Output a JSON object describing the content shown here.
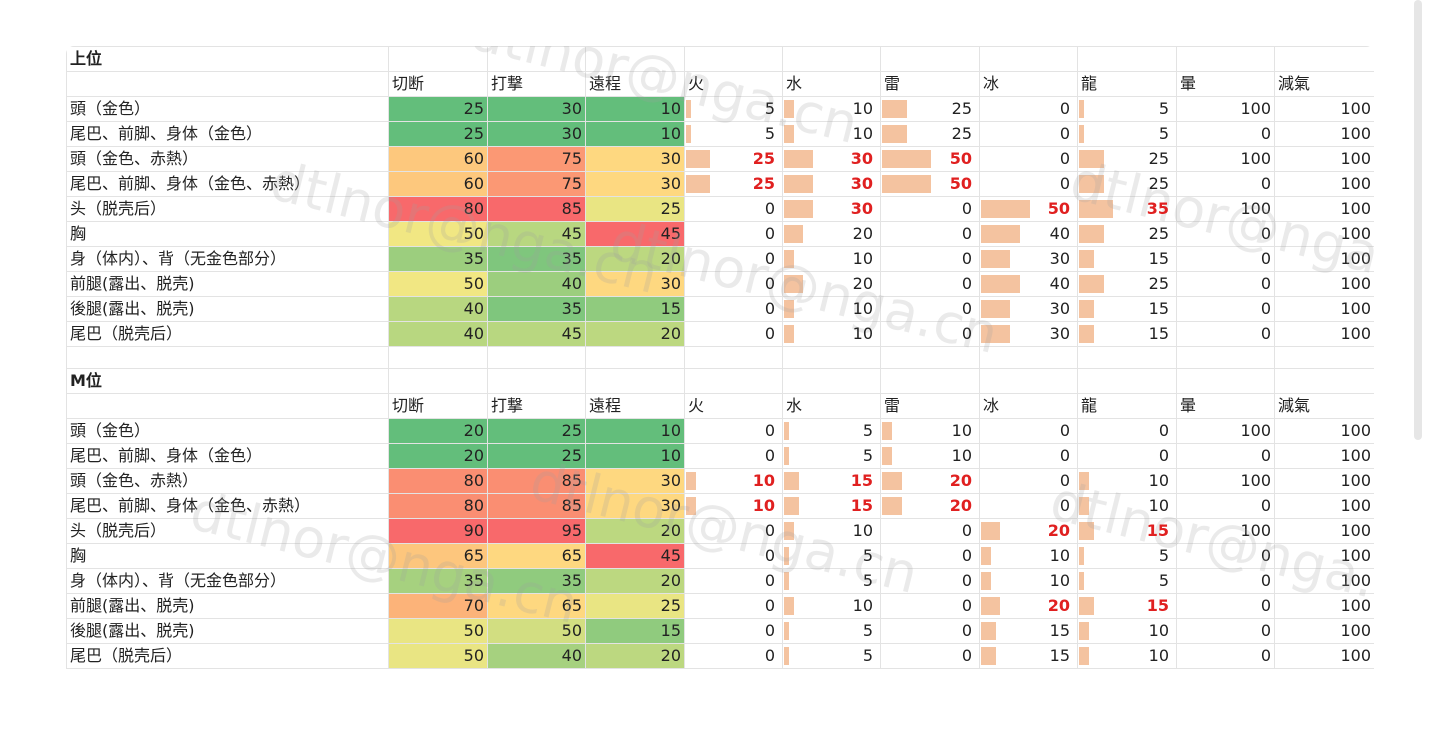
{
  "watermark": "dtlnor@nga.cn",
  "upper": {
    "title": "上位",
    "columns": [
      "切断",
      "打撃",
      "遠程",
      "火",
      "水",
      "雷",
      "冰",
      "龍",
      "暈",
      "減氣"
    ],
    "rows": [
      {
        "part": "頭（金色）",
        "v": [
          25,
          30,
          10,
          5,
          10,
          25,
          0,
          5,
          100,
          100
        ]
      },
      {
        "part": "尾巴、前脚、身体（金色）",
        "v": [
          25,
          30,
          10,
          5,
          10,
          25,
          0,
          5,
          0,
          100
        ]
      },
      {
        "part": "頭（金色、赤熱）",
        "v": [
          60,
          75,
          30,
          25,
          30,
          50,
          0,
          25,
          100,
          100
        ]
      },
      {
        "part": "尾巴、前脚、身体（金色、赤熱）",
        "v": [
          60,
          75,
          30,
          25,
          30,
          50,
          0,
          25,
          0,
          100
        ]
      },
      {
        "part": "头（脱壳后）",
        "v": [
          80,
          85,
          25,
          0,
          30,
          0,
          50,
          35,
          100,
          100
        ]
      },
      {
        "part": "胸",
        "v": [
          50,
          45,
          45,
          0,
          20,
          0,
          40,
          25,
          0,
          100
        ]
      },
      {
        "part": "身（体内）、背（无金色部分）",
        "v": [
          35,
          35,
          20,
          0,
          10,
          0,
          30,
          15,
          0,
          100
        ]
      },
      {
        "part": "前腿(露出、脱壳)",
        "v": [
          50,
          40,
          30,
          0,
          20,
          0,
          40,
          25,
          0,
          100
        ]
      },
      {
        "part": "後腿(露出、脱壳)",
        "v": [
          40,
          35,
          15,
          0,
          10,
          0,
          30,
          15,
          0,
          100
        ]
      },
      {
        "part": "尾巴（脱壳后）",
        "v": [
          40,
          45,
          20,
          0,
          10,
          0,
          30,
          15,
          0,
          100
        ]
      }
    ]
  },
  "master": {
    "title": "M位",
    "columns": [
      "切断",
      "打撃",
      "遠程",
      "火",
      "水",
      "雷",
      "冰",
      "龍",
      "暈",
      "減氣"
    ],
    "rows": [
      {
        "part": "頭（金色）",
        "v": [
          20,
          25,
          10,
          0,
          5,
          10,
          0,
          0,
          100,
          100
        ]
      },
      {
        "part": "尾巴、前脚、身体（金色）",
        "v": [
          20,
          25,
          10,
          0,
          5,
          10,
          0,
          0,
          0,
          100
        ]
      },
      {
        "part": "頭（金色、赤熱）",
        "v": [
          80,
          85,
          30,
          10,
          15,
          20,
          0,
          10,
          100,
          100
        ]
      },
      {
        "part": "尾巴、前脚、身体（金色、赤熱）",
        "v": [
          80,
          85,
          30,
          10,
          15,
          20,
          0,
          10,
          0,
          100
        ]
      },
      {
        "part": "头（脱壳后）",
        "v": [
          90,
          95,
          20,
          0,
          10,
          0,
          20,
          15,
          100,
          100
        ]
      },
      {
        "part": "胸",
        "v": [
          65,
          65,
          45,
          0,
          5,
          0,
          10,
          5,
          0,
          100
        ]
      },
      {
        "part": "身（体内）、背（无金色部分）",
        "v": [
          35,
          35,
          20,
          0,
          5,
          0,
          10,
          5,
          0,
          100
        ]
      },
      {
        "part": "前腿(露出、脱壳)",
        "v": [
          70,
          65,
          25,
          0,
          10,
          0,
          20,
          15,
          0,
          100
        ]
      },
      {
        "part": "後腿(露出、脱壳)",
        "v": [
          50,
          50,
          15,
          0,
          5,
          0,
          15,
          10,
          0,
          100
        ]
      },
      {
        "part": "尾巴（脱壳后）",
        "v": [
          50,
          40,
          20,
          0,
          5,
          0,
          15,
          10,
          0,
          100
        ]
      }
    ]
  }
}
